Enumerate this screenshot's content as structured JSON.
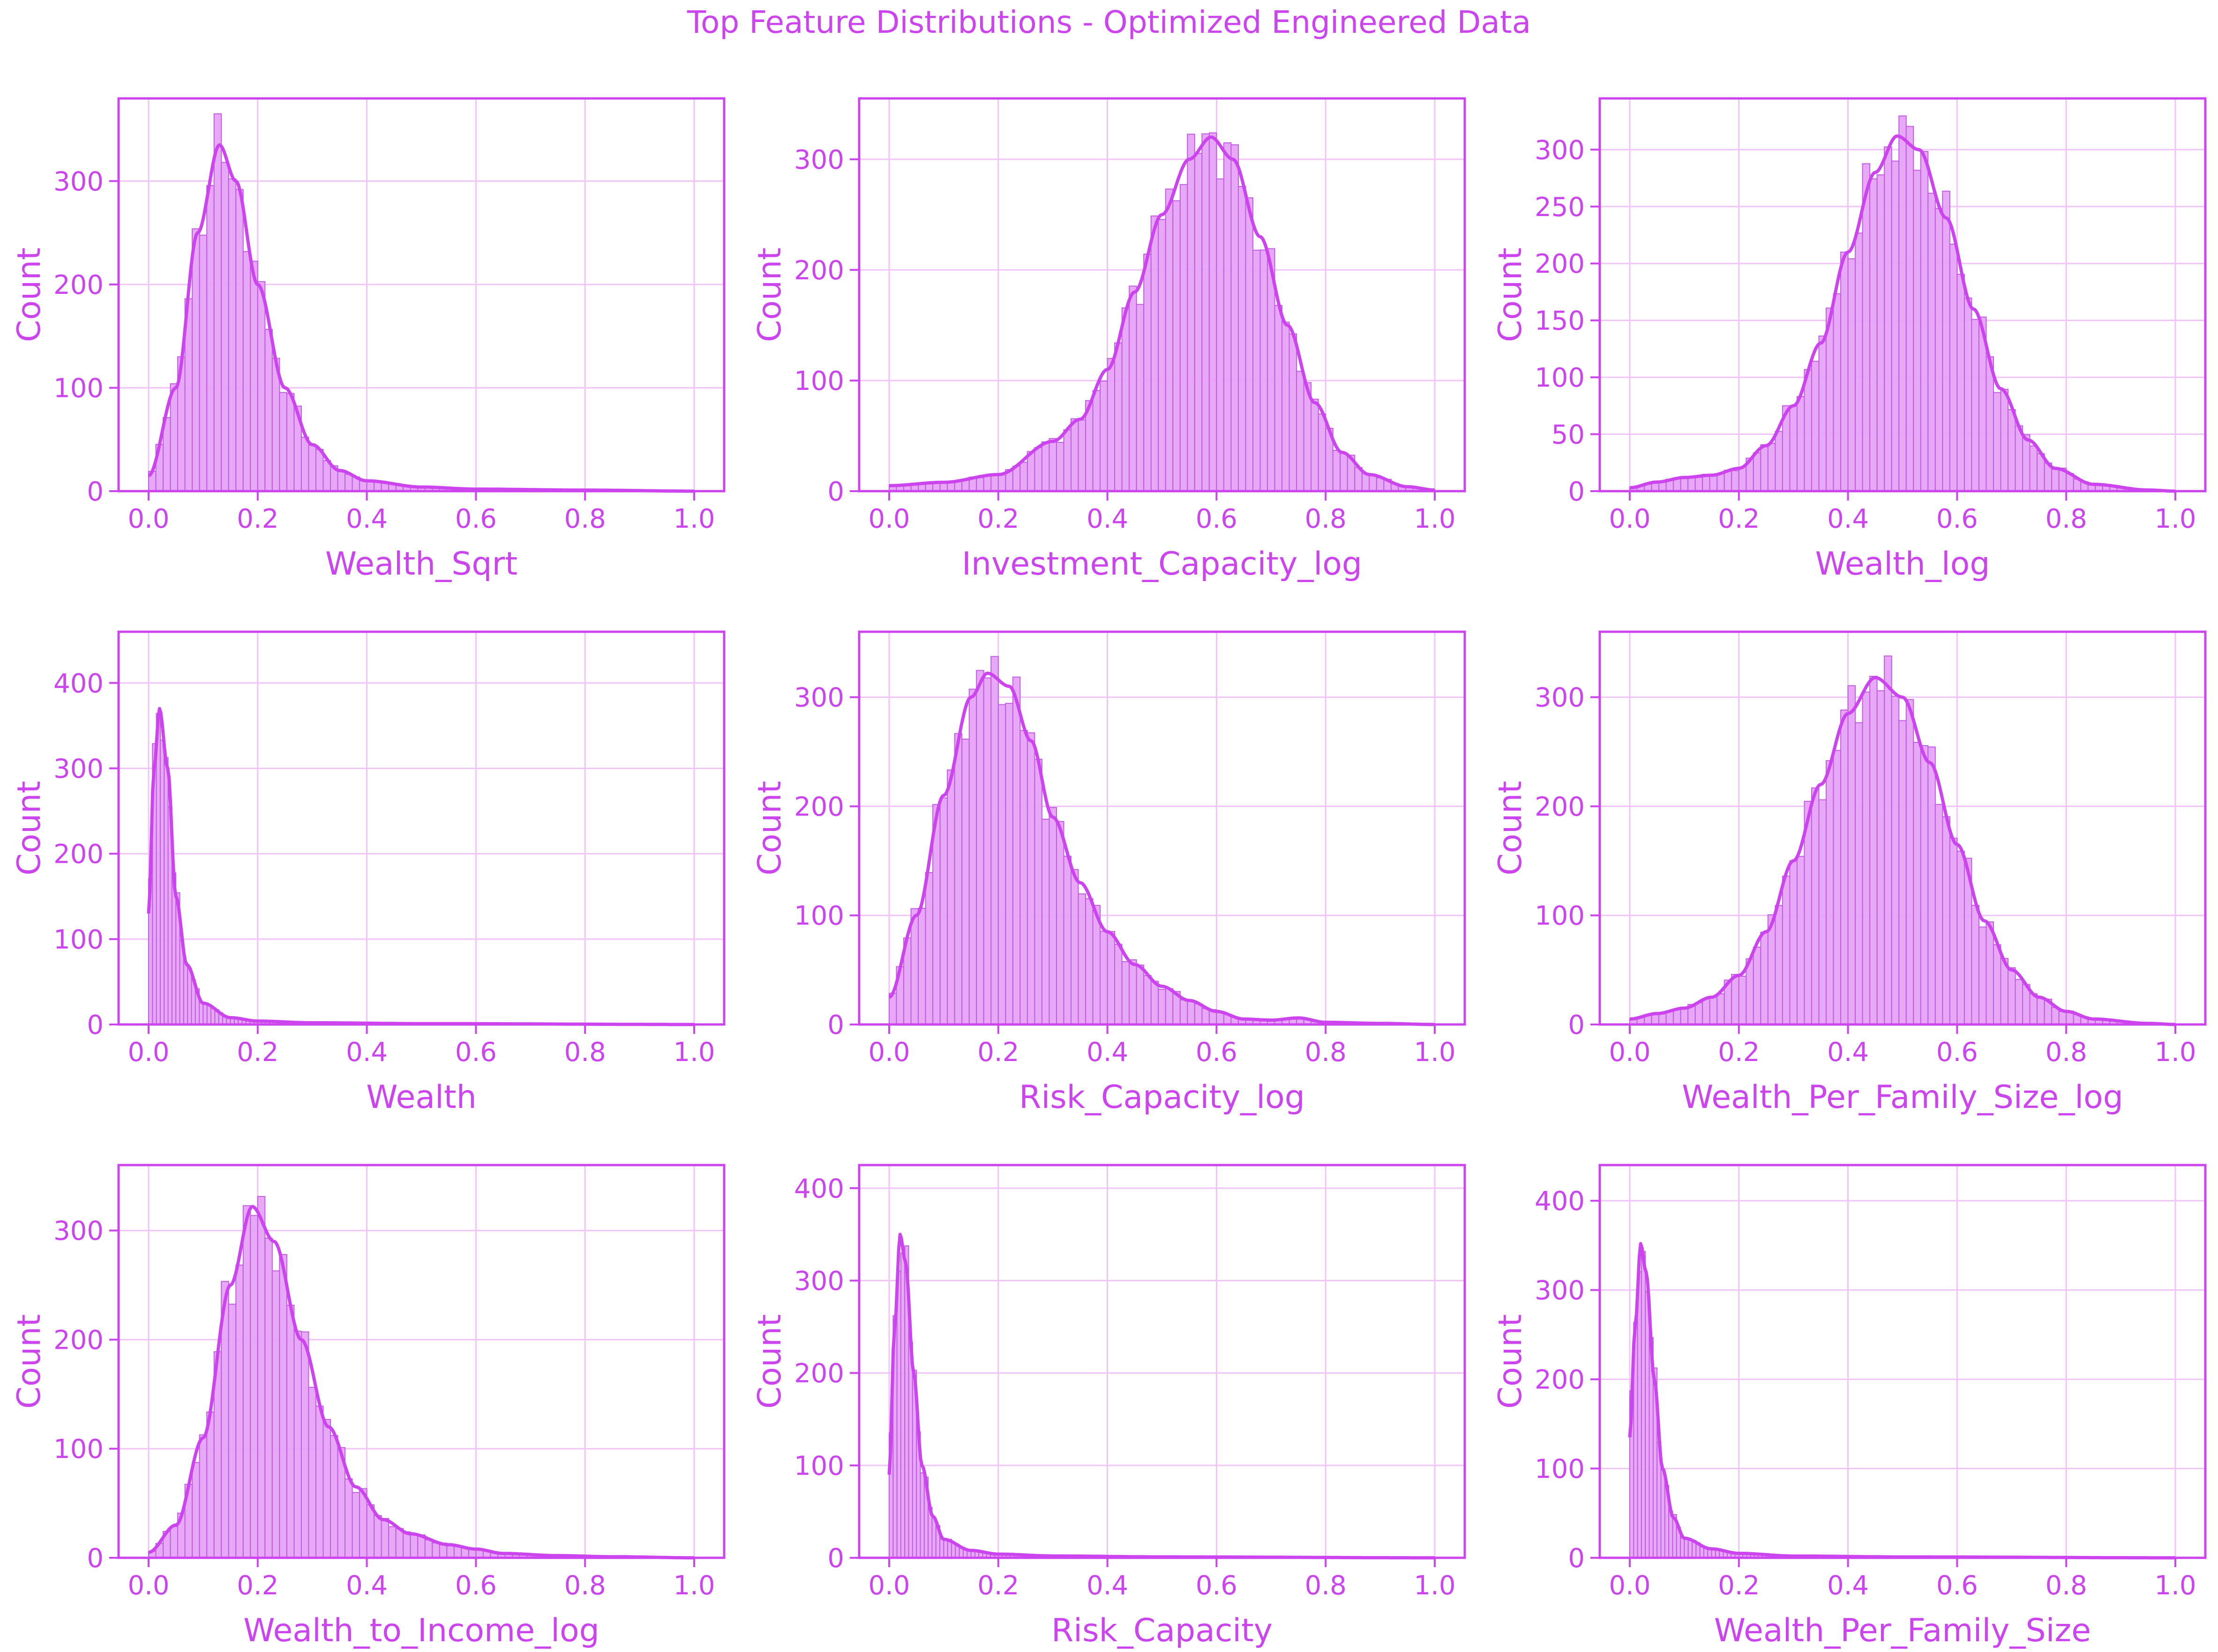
{
  "figure": {
    "title": "Top Feature Distributions - Optimized Engineered Data",
    "color": "#cc44ee",
    "fill_color": "#e6a3f7",
    "grid_color": "#f0c4f9"
  },
  "chart_data": [
    {
      "type": "bar",
      "xlabel": "Wealth_Sqrt",
      "ylabel": "Count",
      "xlim": [
        0,
        1
      ],
      "ylim": [
        0,
        380
      ],
      "xticks": [
        "0.0",
        "0.2",
        "0.4",
        "0.6",
        "0.8",
        "1.0"
      ],
      "yticks": [
        "0",
        "100",
        "200",
        "300"
      ],
      "kde": [
        [
          0,
          15
        ],
        [
          0.05,
          100
        ],
        [
          0.09,
          250
        ],
        [
          0.13,
          335
        ],
        [
          0.16,
          300
        ],
        [
          0.2,
          200
        ],
        [
          0.25,
          100
        ],
        [
          0.3,
          45
        ],
        [
          0.35,
          20
        ],
        [
          0.4,
          10
        ],
        [
          0.5,
          4
        ],
        [
          0.6,
          2
        ],
        [
          0.8,
          1
        ],
        [
          1.0,
          0
        ]
      ]
    },
    {
      "type": "bar",
      "xlabel": "Investment_Capacity_log",
      "ylabel": "Count",
      "xlim": [
        0,
        1
      ],
      "ylim": [
        0,
        355
      ],
      "xticks": [
        "0.0",
        "0.2",
        "0.4",
        "0.6",
        "0.8",
        "1.0"
      ],
      "yticks": [
        "0",
        "100",
        "200",
        "300"
      ],
      "kde": [
        [
          0,
          5
        ],
        [
          0.1,
          8
        ],
        [
          0.2,
          15
        ],
        [
          0.3,
          45
        ],
        [
          0.35,
          65
        ],
        [
          0.4,
          110
        ],
        [
          0.45,
          180
        ],
        [
          0.5,
          250
        ],
        [
          0.55,
          300
        ],
        [
          0.59,
          320
        ],
        [
          0.63,
          300
        ],
        [
          0.68,
          230
        ],
        [
          0.73,
          150
        ],
        [
          0.78,
          80
        ],
        [
          0.83,
          35
        ],
        [
          0.88,
          15
        ],
        [
          0.95,
          4
        ],
        [
          1.0,
          1
        ]
      ]
    },
    {
      "type": "bar",
      "xlabel": "Wealth_log",
      "ylabel": "Count",
      "xlim": [
        0,
        1
      ],
      "ylim": [
        0,
        345
      ],
      "xticks": [
        "0.0",
        "0.2",
        "0.4",
        "0.6",
        "0.8",
        "1.0"
      ],
      "yticks": [
        "0",
        "50",
        "100",
        "150",
        "200",
        "250",
        "300"
      ],
      "kde": [
        [
          0,
          3
        ],
        [
          0.05,
          8
        ],
        [
          0.1,
          12
        ],
        [
          0.15,
          14
        ],
        [
          0.2,
          20
        ],
        [
          0.25,
          40
        ],
        [
          0.3,
          75
        ],
        [
          0.35,
          130
        ],
        [
          0.4,
          210
        ],
        [
          0.45,
          280
        ],
        [
          0.49,
          312
        ],
        [
          0.53,
          300
        ],
        [
          0.58,
          240
        ],
        [
          0.63,
          160
        ],
        [
          0.68,
          90
        ],
        [
          0.73,
          45
        ],
        [
          0.78,
          20
        ],
        [
          0.85,
          6
        ],
        [
          0.95,
          1
        ],
        [
          1.0,
          0
        ]
      ]
    },
    {
      "type": "bar",
      "xlabel": "Wealth",
      "ylabel": "Count",
      "xlim": [
        0,
        1
      ],
      "ylim": [
        0,
        460
      ],
      "xticks": [
        "0.0",
        "0.2",
        "0.4",
        "0.6",
        "0.8",
        "1.0"
      ],
      "yticks": [
        "0",
        "100",
        "200",
        "300",
        "400"
      ],
      "kde": [
        [
          0,
          130
        ],
        [
          0.01,
          300
        ],
        [
          0.02,
          370
        ],
        [
          0.035,
          300
        ],
        [
          0.05,
          150
        ],
        [
          0.07,
          70
        ],
        [
          0.1,
          25
        ],
        [
          0.15,
          8
        ],
        [
          0.2,
          4
        ],
        [
          0.3,
          2
        ],
        [
          0.5,
          1
        ],
        [
          1.0,
          0
        ]
      ]
    },
    {
      "type": "bar",
      "xlabel": "Risk_Capacity_log",
      "ylabel": "Count",
      "xlim": [
        0,
        1
      ],
      "ylim": [
        0,
        360
      ],
      "xticks": [
        "0.0",
        "0.2",
        "0.4",
        "0.6",
        "0.8",
        "1.0"
      ],
      "yticks": [
        "0",
        "100",
        "200",
        "300"
      ],
      "kde": [
        [
          0,
          25
        ],
        [
          0.05,
          100
        ],
        [
          0.1,
          210
        ],
        [
          0.15,
          300
        ],
        [
          0.18,
          322
        ],
        [
          0.22,
          310
        ],
        [
          0.26,
          260
        ],
        [
          0.3,
          190
        ],
        [
          0.35,
          130
        ],
        [
          0.4,
          85
        ],
        [
          0.45,
          55
        ],
        [
          0.5,
          35
        ],
        [
          0.55,
          22
        ],
        [
          0.6,
          12
        ],
        [
          0.65,
          5
        ],
        [
          0.7,
          4
        ],
        [
          0.75,
          6
        ],
        [
          0.8,
          2
        ],
        [
          0.9,
          1
        ],
        [
          1.0,
          0
        ]
      ]
    },
    {
      "type": "bar",
      "xlabel": "Wealth_Per_Family_Size_log",
      "ylabel": "Count",
      "xlim": [
        0,
        1
      ],
      "ylim": [
        0,
        360
      ],
      "xticks": [
        "0.0",
        "0.2",
        "0.4",
        "0.6",
        "0.8",
        "1.0"
      ],
      "yticks": [
        "0",
        "100",
        "200",
        "300"
      ],
      "kde": [
        [
          0,
          5
        ],
        [
          0.05,
          10
        ],
        [
          0.1,
          15
        ],
        [
          0.15,
          25
        ],
        [
          0.2,
          45
        ],
        [
          0.25,
          85
        ],
        [
          0.3,
          150
        ],
        [
          0.35,
          220
        ],
        [
          0.4,
          285
        ],
        [
          0.45,
          318
        ],
        [
          0.5,
          300
        ],
        [
          0.55,
          240
        ],
        [
          0.6,
          165
        ],
        [
          0.65,
          95
        ],
        [
          0.7,
          50
        ],
        [
          0.75,
          25
        ],
        [
          0.8,
          12
        ],
        [
          0.85,
          5
        ],
        [
          0.95,
          1
        ],
        [
          1.0,
          0
        ]
      ]
    },
    {
      "type": "bar",
      "xlabel": "Wealth_to_Income_log",
      "ylabel": "Count",
      "xlim": [
        0,
        1
      ],
      "ylim": [
        0,
        360
      ],
      "xticks": [
        "0.0",
        "0.2",
        "0.4",
        "0.6",
        "0.8",
        "1.0"
      ],
      "yticks": [
        "0",
        "100",
        "200",
        "300"
      ],
      "kde": [
        [
          0,
          5
        ],
        [
          0.05,
          30
        ],
        [
          0.1,
          110
        ],
        [
          0.15,
          250
        ],
        [
          0.19,
          322
        ],
        [
          0.23,
          290
        ],
        [
          0.28,
          200
        ],
        [
          0.33,
          120
        ],
        [
          0.38,
          65
        ],
        [
          0.43,
          35
        ],
        [
          0.48,
          22
        ],
        [
          0.55,
          12
        ],
        [
          0.6,
          8
        ],
        [
          0.65,
          4
        ],
        [
          0.75,
          2
        ],
        [
          0.85,
          1
        ],
        [
          1.0,
          0
        ]
      ]
    },
    {
      "type": "bar",
      "xlabel": "Risk_Capacity",
      "ylabel": "Count",
      "xlim": [
        0,
        1
      ],
      "ylim": [
        0,
        425
      ],
      "xticks": [
        "0.0",
        "0.2",
        "0.4",
        "0.6",
        "0.8",
        "1.0"
      ],
      "yticks": [
        "0",
        "100",
        "200",
        "300",
        "400"
      ],
      "kde": [
        [
          0,
          90
        ],
        [
          0.01,
          250
        ],
        [
          0.02,
          350
        ],
        [
          0.03,
          320
        ],
        [
          0.045,
          200
        ],
        [
          0.06,
          100
        ],
        [
          0.08,
          45
        ],
        [
          0.1,
          20
        ],
        [
          0.15,
          8
        ],
        [
          0.2,
          4
        ],
        [
          0.3,
          2
        ],
        [
          0.5,
          1
        ],
        [
          1.0,
          0
        ]
      ]
    },
    {
      "type": "bar",
      "xlabel": "Wealth_Per_Family_Size",
      "ylabel": "Count",
      "xlim": [
        0,
        1
      ],
      "ylim": [
        0,
        440
      ],
      "xticks": [
        "0.0",
        "0.2",
        "0.4",
        "0.6",
        "0.8",
        "1.0"
      ],
      "yticks": [
        "0",
        "100",
        "200",
        "300",
        "400"
      ],
      "kde": [
        [
          0,
          135
        ],
        [
          0.01,
          260
        ],
        [
          0.02,
          352
        ],
        [
          0.03,
          320
        ],
        [
          0.045,
          200
        ],
        [
          0.06,
          100
        ],
        [
          0.08,
          45
        ],
        [
          0.1,
          22
        ],
        [
          0.15,
          10
        ],
        [
          0.2,
          5
        ],
        [
          0.3,
          2
        ],
        [
          0.5,
          1
        ],
        [
          1.0,
          0
        ]
      ]
    }
  ]
}
